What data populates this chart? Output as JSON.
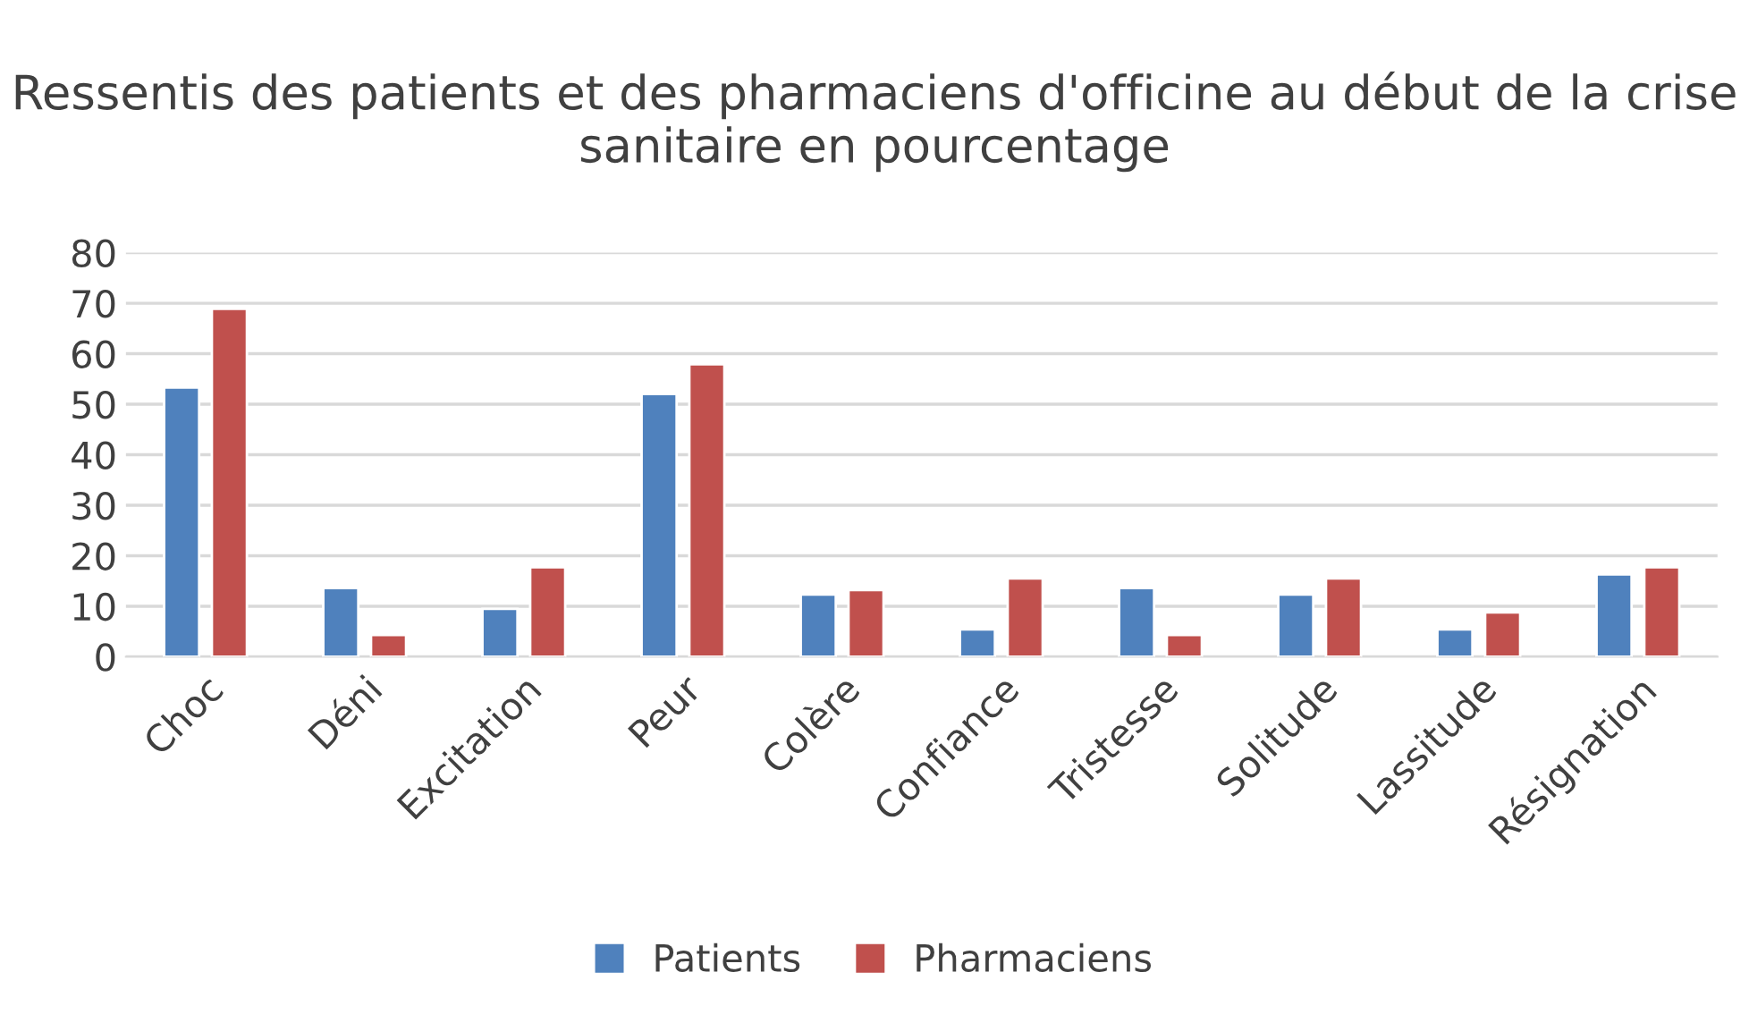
{
  "chart_data": {
    "type": "bar",
    "title": "Ressentis des patients et des pharmaciens d'officine au début de la crise sanitaire en pourcentage",
    "categories": [
      "Choc",
      "Déni",
      "Excitation",
      "Peur",
      "Colère",
      "Confiance",
      "Tristesse",
      "Solitude",
      "Lassitude",
      "Résignation"
    ],
    "series": [
      {
        "name": "Patients",
        "color": "#4f81bd",
        "values": [
          53.3,
          13.6,
          9.5,
          52,
          12.3,
          5.4,
          13.6,
          12.3,
          5.4,
          16.3
        ]
      },
      {
        "name": "Pharmaciens",
        "color": "#c0504d",
        "values": [
          68.9,
          4.3,
          17.7,
          57.9,
          13.2,
          15.5,
          4.3,
          15.5,
          8.8,
          17.7
        ]
      }
    ],
    "ylim": [
      0,
      80
    ],
    "yticks": [
      0,
      10,
      20,
      30,
      40,
      50,
      60,
      70,
      80
    ],
    "grid": "y",
    "legend": "bottom"
  }
}
